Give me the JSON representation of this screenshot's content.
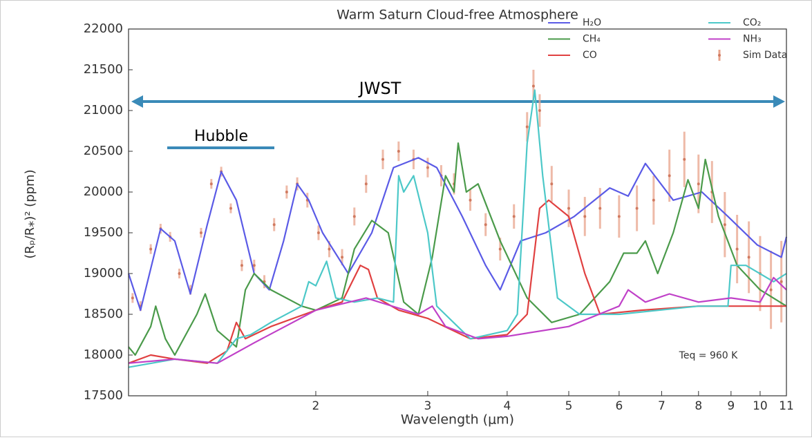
{
  "chart_data": {
    "type": "line",
    "title": "Warm Saturn Cloud-free Atmosphere",
    "xlabel": "Wavelength (μm)",
    "ylabel": "(Rₚ/R⁎)² (ppm)",
    "xscale": "log",
    "xlim": [
      1.015,
      11
    ],
    "xticks": [
      2,
      3,
      4,
      5,
      6,
      7,
      8,
      9,
      10,
      11
    ],
    "ylim": [
      17500,
      22000
    ],
    "yticks": [
      17500,
      18000,
      18500,
      19000,
      19500,
      20000,
      20500,
      21000,
      21500,
      22000
    ],
    "legend": "upper right",
    "annotations": [
      "JWST",
      "Hubble",
      "Teq = 960 K"
    ],
    "series": [
      {
        "name": "H₂O",
        "color": "#5a5ae6",
        "x": [
          1.015,
          1.06,
          1.14,
          1.2,
          1.27,
          1.35,
          1.42,
          1.5,
          1.6,
          1.69,
          1.78,
          1.87,
          1.95,
          2.05,
          2.25,
          2.45,
          2.65,
          2.9,
          3.1,
          3.4,
          3.7,
          3.9,
          4.2,
          4.6,
          5.1,
          5.8,
          6.2,
          6.6,
          7.3,
          8.1,
          8.9,
          9.9,
          10.8,
          11
        ],
        "values": [
          19000,
          18550,
          19550,
          19400,
          18750,
          19600,
          20250,
          19900,
          19000,
          18800,
          19400,
          20100,
          19900,
          19500,
          19000,
          19500,
          20300,
          20420,
          20300,
          19700,
          19100,
          18800,
          19400,
          19500,
          19700,
          20050,
          19950,
          20350,
          19900,
          20000,
          19700,
          19350,
          19200,
          19450
        ]
      },
      {
        "name": "CH₄",
        "color": "#4a9a4a",
        "x": [
          1.015,
          1.04,
          1.1,
          1.12,
          1.16,
          1.2,
          1.3,
          1.34,
          1.4,
          1.5,
          1.55,
          1.6,
          1.7,
          1.9,
          2.0,
          2.2,
          2.3,
          2.45,
          2.6,
          2.75,
          2.9,
          3.05,
          3.2,
          3.3,
          3.35,
          3.45,
          3.6,
          3.9,
          4.3,
          4.7,
          5.2,
          5.8,
          6.1,
          6.4,
          6.6,
          6.9,
          7.3,
          7.7,
          8.0,
          8.2,
          8.6,
          9.2,
          10.0,
          11
        ],
        "values": [
          18100,
          18000,
          18350,
          18600,
          18200,
          18000,
          18500,
          18750,
          18300,
          18100,
          18800,
          19000,
          18800,
          18600,
          18550,
          18700,
          19300,
          19650,
          19500,
          18650,
          18500,
          19200,
          20200,
          20000,
          20600,
          20000,
          20100,
          19400,
          18700,
          18400,
          18500,
          18900,
          19250,
          19250,
          19400,
          19000,
          19500,
          20150,
          19800,
          20400,
          19700,
          19100,
          18800,
          18600
        ]
      },
      {
        "name": "CO",
        "color": "#e04040",
        "x": [
          1.015,
          1.1,
          1.2,
          1.35,
          1.45,
          1.5,
          1.55,
          1.7,
          2.0,
          2.2,
          2.35,
          2.42,
          2.5,
          2.7,
          3.0,
          3.5,
          4.0,
          4.3,
          4.5,
          4.65,
          5.0,
          5.3,
          5.6,
          6.5,
          8,
          10,
          11
        ],
        "values": [
          17900,
          18000,
          17950,
          17900,
          18050,
          18400,
          18200,
          18350,
          18550,
          18650,
          19100,
          19050,
          18700,
          18550,
          18450,
          18200,
          18250,
          18500,
          19800,
          19900,
          19700,
          19000,
          18500,
          18550,
          18600,
          18600,
          18600
        ]
      },
      {
        "name": "CO₂",
        "color": "#4cc8c8",
        "x": [
          1.015,
          1.2,
          1.4,
          1.5,
          1.58,
          1.7,
          1.9,
          1.95,
          2.0,
          2.08,
          2.15,
          2.3,
          2.5,
          2.65,
          2.7,
          2.75,
          2.85,
          3.0,
          3.1,
          3.5,
          4.0,
          4.15,
          4.3,
          4.42,
          4.55,
          4.8,
          5.2,
          6,
          8,
          8.9,
          9.0,
          9.5,
          10.5,
          11
        ],
        "values": [
          17850,
          17950,
          17900,
          18200,
          18250,
          18400,
          18600,
          18900,
          18850,
          19150,
          18700,
          18650,
          18700,
          18650,
          20200,
          20000,
          20200,
          19500,
          18600,
          18200,
          18300,
          18500,
          20600,
          21250,
          20200,
          18700,
          18500,
          18500,
          18600,
          18600,
          19100,
          19100,
          18900,
          19000
        ]
      },
      {
        "name": "NH₃",
        "color": "#c040c8",
        "x": [
          1.015,
          1.2,
          1.4,
          1.6,
          2.0,
          2.4,
          2.9,
          3.05,
          3.2,
          3.6,
          4.0,
          5.0,
          6.0,
          6.2,
          6.6,
          7.2,
          8,
          9,
          10,
          10.5,
          11
        ],
        "values": [
          17900,
          17950,
          17900,
          18150,
          18550,
          18700,
          18500,
          18600,
          18350,
          18200,
          18230,
          18350,
          18600,
          18800,
          18650,
          18750,
          18650,
          18700,
          18650,
          18950,
          18800
        ]
      },
      {
        "name": "Sim Data",
        "color": "#e9a48c",
        "kind": "errorbar",
        "x": [
          1.03,
          1.06,
          1.1,
          1.14,
          1.18,
          1.22,
          1.27,
          1.32,
          1.37,
          1.42,
          1.47,
          1.53,
          1.6,
          1.66,
          1.72,
          1.8,
          1.87,
          1.94,
          2.02,
          2.1,
          2.2,
          2.3,
          2.4,
          2.55,
          2.7,
          2.85,
          3.0,
          3.15,
          3.3,
          3.5,
          3.7,
          3.9,
          4.1,
          4.3,
          4.4,
          4.5,
          4.7,
          5.0,
          5.3,
          5.6,
          6.0,
          6.4,
          6.8,
          7.2,
          7.6,
          8.0,
          8.4,
          8.8,
          9.2,
          9.6,
          10.0,
          10.4,
          10.8
        ],
        "values": [
          18700,
          18600,
          19300,
          19550,
          19450,
          19000,
          18800,
          19500,
          20100,
          20250,
          19800,
          19100,
          19100,
          18900,
          19600,
          20000,
          20100,
          19900,
          19500,
          19300,
          19200,
          19700,
          20100,
          20400,
          20500,
          20400,
          20300,
          20200,
          20100,
          19900,
          19600,
          19300,
          19700,
          20800,
          21300,
          21000,
          20100,
          19800,
          19700,
          19800,
          19700,
          19800,
          19900,
          20200,
          20400,
          20100,
          20000,
          19600,
          19300,
          19200,
          19000,
          18800,
          18900
        ],
        "errors": [
          60,
          60,
          60,
          60,
          60,
          60,
          60,
          60,
          60,
          60,
          60,
          70,
          70,
          80,
          80,
          80,
          80,
          90,
          90,
          100,
          100,
          110,
          110,
          120,
          120,
          120,
          120,
          130,
          130,
          130,
          140,
          140,
          150,
          180,
          200,
          200,
          220,
          230,
          240,
          250,
          260,
          280,
          300,
          320,
          340,
          360,
          380,
          400,
          420,
          440,
          460,
          480,
          500
        ]
      }
    ]
  }
}
